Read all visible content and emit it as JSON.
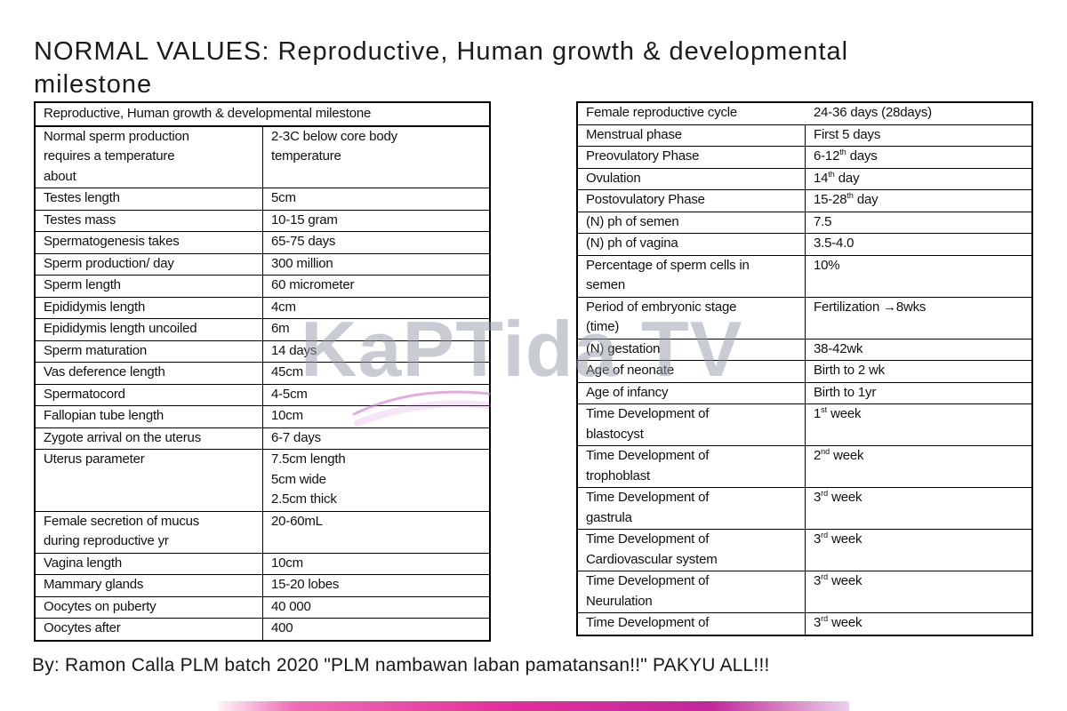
{
  "title": "NORMAL VALUES: Reproductive, Human growth & developmental\nmilestone",
  "byline": "By: Ramon Calla PLM batch 2020 \"PLM nambawan laban pamatansan!!\" PAKYU ALL!!!",
  "watermark": {
    "text": "KaPTida TV",
    "color": "rgba(148,156,167,0.5)",
    "swoosh_color": "#d27fd2"
  },
  "brand_bar": {
    "colors": [
      "rgba(244,143,177,0.1)",
      "#f06eb5 12%",
      "#e3309c 45%",
      "#c2279b 78%",
      "rgba(178,63,173,0.25) 100%"
    ]
  },
  "left_table": {
    "header": "Reproductive, Human growth & developmental milestone",
    "rows": [
      {
        "label": "Normal sperm production\nrequires a temperature\nabout",
        "value": "2-3C below core body\ntemperature"
      },
      {
        "label": "Testes length",
        "value": "5cm"
      },
      {
        "label": "Testes mass",
        "value": "10-15 gram"
      },
      {
        "label": "Spermatogenesis takes",
        "value": "65-75 days"
      },
      {
        "label": "Sperm production/ day",
        "value": "300 million"
      },
      {
        "label": "Sperm length",
        "value": "60 micrometer"
      },
      {
        "label": "Epididymis length",
        "value": "4cm"
      },
      {
        "label": "Epididymis length uncoiled",
        "value": "6m"
      },
      {
        "label": "Sperm maturation",
        "value": "14 days"
      },
      {
        "label": "Vas deference length",
        "value": "45cm"
      },
      {
        "label": "Spermatocord",
        "value": "4-5cm"
      },
      {
        "label": "Fallopian tube length",
        "value": "10cm"
      },
      {
        "label": "Zygote arrival on the uterus",
        "value": "6-7 days"
      },
      {
        "label": "Uterus parameter",
        "value": "7.5cm length\n5cm wide\n2.5cm thick"
      },
      {
        "label": "Female secretion of mucus\nduring reproductive yr",
        "value": "20-60mL"
      },
      {
        "label": "Vagina length",
        "value": "10cm"
      },
      {
        "label": "Mammary glands",
        "value": "15-20 lobes"
      },
      {
        "label": "Oocytes on puberty",
        "value": "40 000"
      },
      {
        "label": "Oocytes after",
        "value": "400"
      }
    ]
  },
  "right_table": {
    "rows": [
      {
        "label": "Female reproductive cycle",
        "value": "24-36 days (28days)",
        "no_divider": true
      },
      {
        "label": "Menstrual phase",
        "value": "First 5 days"
      },
      {
        "label": "Preovulatory Phase",
        "value": "6-12^th^ days"
      },
      {
        "label": "Ovulation",
        "value": "14^th^ day"
      },
      {
        "label": "Postovulatory Phase",
        "value": "15-28^th^ day"
      },
      {
        "label": "(N) ph of semen",
        "value": "7.5"
      },
      {
        "label": "(N) ph of vagina",
        "value": "3.5-4.0"
      },
      {
        "label": "Percentage of sperm cells in\nsemen",
        "value": "10%"
      },
      {
        "label": "Period of embryonic stage\n(time)",
        "value": "Fertilization →8wks"
      },
      {
        "label": "(N) gestation",
        "value": "38-42wk"
      },
      {
        "label": "Age of neonate",
        "value": "Birth to 2 wk"
      },
      {
        "label": "Age of infancy",
        "value": "Birth to 1yr"
      },
      {
        "label": "Time Development of\nblastocyst",
        "value": "1^st^ week"
      },
      {
        "label": "Time Development of\ntrophoblast",
        "value": "2^nd^ week"
      },
      {
        "label": "Time Development of\ngastrula",
        "value": "3^rd^ week"
      },
      {
        "label": "Time Development of\nCardiovascular system",
        "value": "3^rd^ week"
      },
      {
        "label": "Time Development of\nNeurulation",
        "value": "3^rd^ week"
      },
      {
        "label": "Time Development of",
        "value": "3^rd^ week"
      }
    ]
  }
}
